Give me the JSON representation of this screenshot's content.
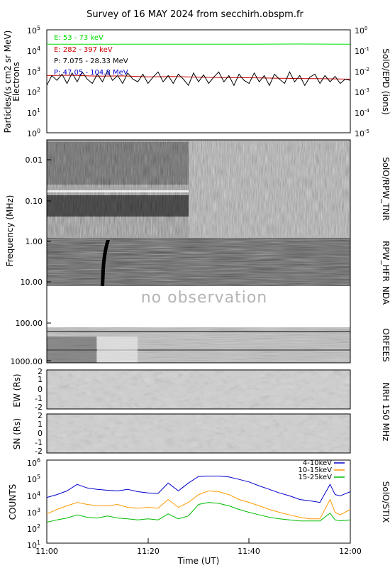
{
  "title": "Survey of 16 MAY 2024 from secchirh.obspm.fr",
  "x_axis": {
    "label": "Time (UT)",
    "ticks": [
      "11:00",
      "11:20",
      "11:40",
      "12:00"
    ],
    "range_minutes": [
      0,
      60
    ]
  },
  "panels": {
    "epd": {
      "side_label": "SolO/EPD (ions)",
      "y_label_line1": "Particles/(s cm2 sr MeV)",
      "y_label_line2": "Electrons",
      "left_ticks": [
        "10^5",
        "10^4",
        "10^3",
        "10^2",
        "10^1",
        "10^0"
      ],
      "right_ticks": [
        "10^0",
        "10^-1",
        "10^-2",
        "10^-3",
        "10^-4",
        "10^-5"
      ],
      "legend": [
        {
          "text": "E: 53 - 73 keV",
          "color": "#00dd00"
        },
        {
          "text": "E: 282 - 397 keV",
          "color": "#cc0000"
        },
        {
          "text": "P: 7.075 - 28.33 MeV",
          "color": "#000000"
        },
        {
          "text": "P: 47.05 - 104.8 MeV",
          "color": "#0000cc"
        }
      ]
    },
    "spectra": {
      "y_label": "Frequency (MHz)",
      "ticks": [
        "0.01",
        "0.10",
        "1.00",
        "10.00",
        "100.00",
        "1000.00"
      ],
      "labels": {
        "tnr": "SolO/RPW_TNR",
        "hfr": "RPW_HFR",
        "nda": "NDA",
        "orfees": "ORFEES"
      },
      "no_observation": "no observation"
    },
    "nrh": {
      "side_label": "NRH 150 MHz",
      "ew_label": "EW (Rs)",
      "sn_label": "SN (Rs)",
      "ticks": [
        "2",
        "1",
        "0",
        "-1",
        "-2"
      ]
    },
    "stix": {
      "side_label": "SolO/STIX",
      "y_label": "COUNTS",
      "ticks": [
        "10^6",
        "10^5",
        "10^4",
        "10^3",
        "10^2",
        "10^1"
      ]
    }
  },
  "chart_data": [
    {
      "type": "line",
      "title": "SolO/EPD",
      "x_unit": "minutes after 11:00 UT",
      "y_scale": "log",
      "ylim": [
        1,
        100000
      ],
      "series": [
        {
          "name": "E: 53 - 73 keV",
          "color": "#00dd00",
          "x": [
            0,
            10,
            20,
            30,
            40,
            50,
            60
          ],
          "values": [
            20000,
            20000,
            20000,
            20000,
            20000,
            20500,
            20000
          ]
        },
        {
          "name": "E: 282 - 397 keV",
          "color": "#cc0000",
          "x": [
            0,
            5,
            10,
            15,
            20,
            25,
            30,
            35,
            40,
            45,
            50,
            55,
            60
          ],
          "values": [
            600,
            620,
            560,
            580,
            520,
            540,
            500,
            480,
            470,
            450,
            430,
            420,
            400
          ]
        },
        {
          "name": "P: 7.075 - 28.33 MeV",
          "color": "#000000",
          "x": [
            0,
            1,
            2,
            3,
            4,
            5,
            6,
            7,
            8,
            9,
            10,
            11,
            12,
            13,
            14,
            15,
            16,
            17,
            18,
            19,
            20,
            21,
            22,
            23,
            24,
            25,
            26,
            27,
            28,
            29,
            30,
            31,
            32,
            33,
            34,
            35,
            36,
            37,
            38,
            39,
            40,
            41,
            42,
            43,
            44,
            45,
            46,
            47,
            48,
            49,
            50,
            51,
            52,
            53,
            54,
            55,
            56,
            57,
            58,
            59,
            60
          ],
          "values": [
            200,
            600,
            350,
            700,
            250,
            800,
            300,
            900,
            400,
            250,
            700,
            300,
            1000,
            350,
            600,
            250,
            800,
            400,
            300,
            700,
            250,
            500,
            900,
            300,
            600,
            250,
            700,
            400,
            200,
            800,
            300,
            650,
            250,
            500,
            900,
            300,
            600,
            200,
            700,
            350,
            250,
            800,
            300,
            600,
            200,
            700,
            400,
            250,
            900,
            300,
            600,
            200,
            500,
            700,
            250,
            600,
            300,
            550,
            250,
            400,
            350
          ]
        },
        {
          "name": "P: 47.05 - 104.8 MeV",
          "color": "#0000cc",
          "x": [],
          "values": []
        }
      ]
    },
    {
      "type": "line",
      "title": "SolO/STIX",
      "x_unit": "minutes after 11:00 UT",
      "y_scale": "log",
      "ylim": [
        10,
        1000000
      ],
      "series": [
        {
          "name": "4-10keV",
          "color": "#0000cc",
          "x": [
            0,
            2,
            4,
            6,
            8,
            10,
            12,
            14,
            16,
            18,
            20,
            22,
            24,
            26,
            28,
            30,
            32,
            34,
            36,
            38,
            40,
            42,
            44,
            46,
            48,
            50,
            52,
            54,
            56,
            57,
            58,
            60
          ],
          "values": [
            8000,
            12000,
            20000,
            50000,
            30000,
            25000,
            22000,
            20000,
            25000,
            18000,
            15000,
            14000,
            60000,
            20000,
            60000,
            150000,
            160000,
            160000,
            140000,
            100000,
            70000,
            40000,
            25000,
            15000,
            10000,
            6000,
            5000,
            4000,
            50000,
            12000,
            10000,
            18000
          ]
        },
        {
          "name": "10-15keV",
          "color": "#ff9900",
          "x": [
            0,
            2,
            4,
            6,
            8,
            10,
            12,
            14,
            16,
            18,
            20,
            22,
            24,
            26,
            28,
            30,
            32,
            34,
            36,
            38,
            40,
            42,
            44,
            46,
            48,
            50,
            52,
            54,
            56,
            57,
            58,
            60
          ],
          "values": [
            800,
            1500,
            2500,
            4000,
            3000,
            2500,
            2500,
            3000,
            2000,
            1800,
            2000,
            1800,
            6000,
            2000,
            4000,
            12000,
            20000,
            18000,
            12000,
            6000,
            4000,
            2500,
            1500,
            1000,
            700,
            500,
            400,
            400,
            6000,
            1000,
            700,
            1500
          ]
        },
        {
          "name": "15-25keV",
          "color": "#00bb00",
          "x": [
            0,
            2,
            4,
            6,
            8,
            10,
            12,
            14,
            16,
            18,
            20,
            22,
            24,
            26,
            28,
            30,
            32,
            34,
            36,
            38,
            40,
            42,
            44,
            46,
            48,
            50,
            52,
            54,
            56,
            57,
            58,
            60
          ],
          "values": [
            250,
            350,
            450,
            700,
            500,
            450,
            600,
            450,
            400,
            350,
            400,
            350,
            800,
            400,
            600,
            3000,
            4000,
            3500,
            2500,
            1500,
            1000,
            700,
            500,
            400,
            350,
            300,
            300,
            300,
            900,
            350,
            300,
            350
          ]
        }
      ]
    }
  ]
}
